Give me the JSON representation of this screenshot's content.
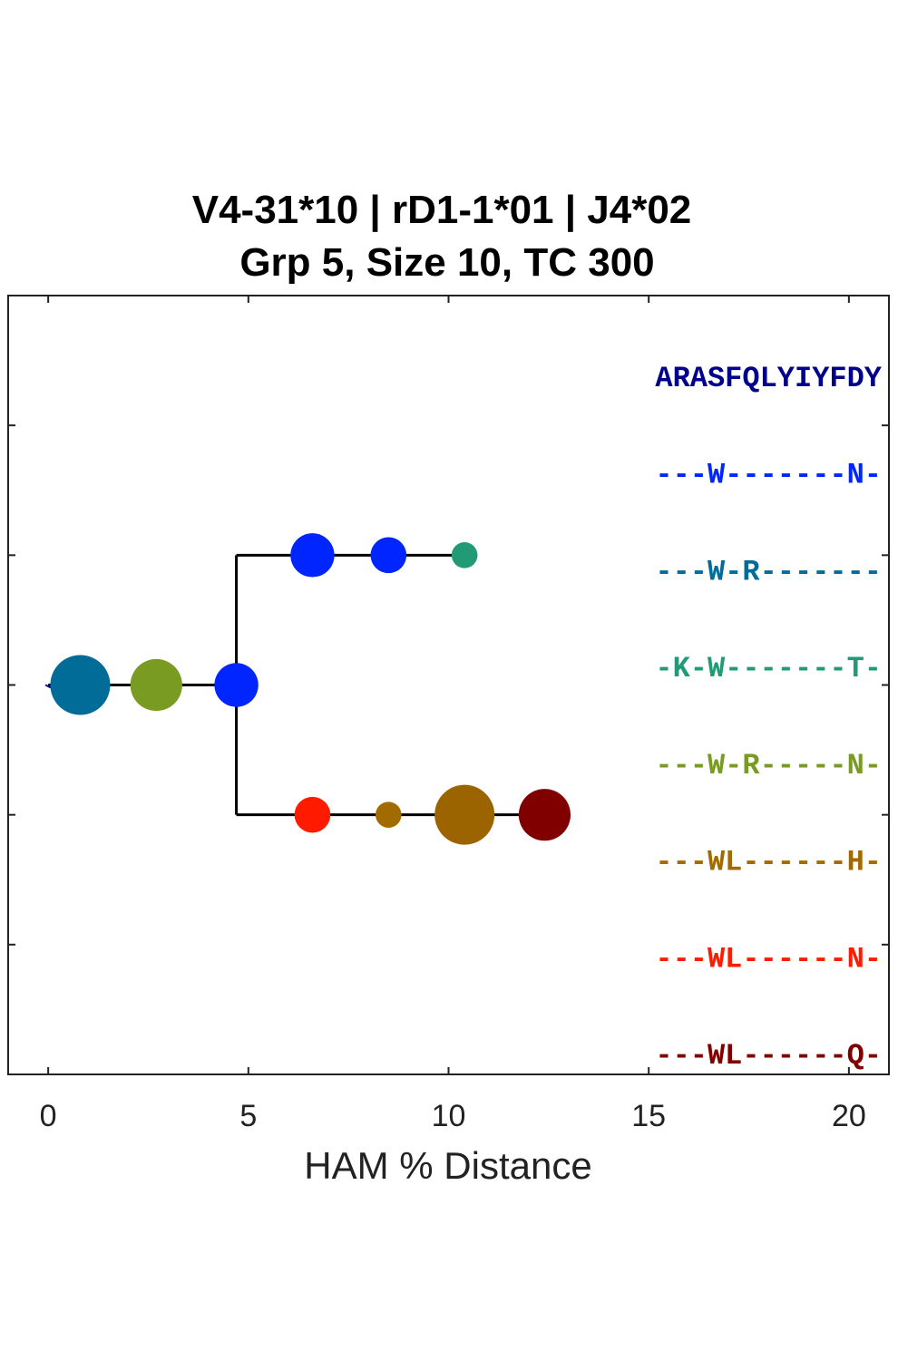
{
  "chart_data": {
    "type": "scatter",
    "subtype": "lineage-tree",
    "title_lines": [
      "V4-31*10 | rD1-1*01 | J4*02",
      "Grp 5, Size 10, TC 300"
    ],
    "xlabel": "HAM % Distance",
    "xlim": [
      -1,
      21
    ],
    "x_ticks": [
      0,
      5,
      10,
      15,
      20
    ],
    "ylim": [
      -3,
      3
    ],
    "y_tick_count": 7,
    "grid": false,
    "tree": {
      "root_x": 0,
      "root_y": 0,
      "main_branch": {
        "from_x": 0,
        "to_x": 4.7,
        "y": 0
      },
      "split": {
        "x": 4.7,
        "y_top": 1,
        "y_bottom": -1
      },
      "upper_branch": {
        "from_x": 4.7,
        "to_x": 10.4,
        "y": 1
      },
      "lower_branch": {
        "from_x": 4.7,
        "to_x": 12.4,
        "y": -1
      }
    },
    "nodes": [
      {
        "x": 0.8,
        "y": 0,
        "size": 3.0,
        "color": "#006c97"
      },
      {
        "x": 2.7,
        "y": 0,
        "size": 2.6,
        "color": "#7a9b21"
      },
      {
        "x": 4.7,
        "y": 0,
        "size": 2.2,
        "color": "#0025ff"
      },
      {
        "x": 6.6,
        "y": 1,
        "size": 2.2,
        "color": "#0025ff"
      },
      {
        "x": 8.5,
        "y": 1,
        "size": 1.8,
        "color": "#0025ff"
      },
      {
        "x": 10.4,
        "y": 1,
        "size": 1.3,
        "color": "#229a75"
      },
      {
        "x": 6.6,
        "y": -1,
        "size": 1.8,
        "color": "#ff1a00"
      },
      {
        "x": 8.5,
        "y": -1,
        "size": 1.3,
        "color": "#a26b00"
      },
      {
        "x": 10.4,
        "y": -1,
        "size": 3.0,
        "color": "#9c6400"
      },
      {
        "x": 12.4,
        "y": -1,
        "size": 2.6,
        "color": "#800000"
      }
    ],
    "sequences": [
      {
        "text": "ARASFQLYIYFDY",
        "color": "#00008b"
      },
      {
        "text": "---W-------N-",
        "color": "#0025ff"
      },
      {
        "text": "---W-R-------",
        "color": "#006c97"
      },
      {
        "text": "-K-W-------T-",
        "color": "#229a75"
      },
      {
        "text": "---W-R-----N-",
        "color": "#7a9b21"
      },
      {
        "text": "---WL------H-",
        "color": "#a26b00"
      },
      {
        "text": "---WL------N-",
        "color": "#ff1a00"
      },
      {
        "text": "---WL------Q-",
        "color": "#800000"
      }
    ]
  }
}
